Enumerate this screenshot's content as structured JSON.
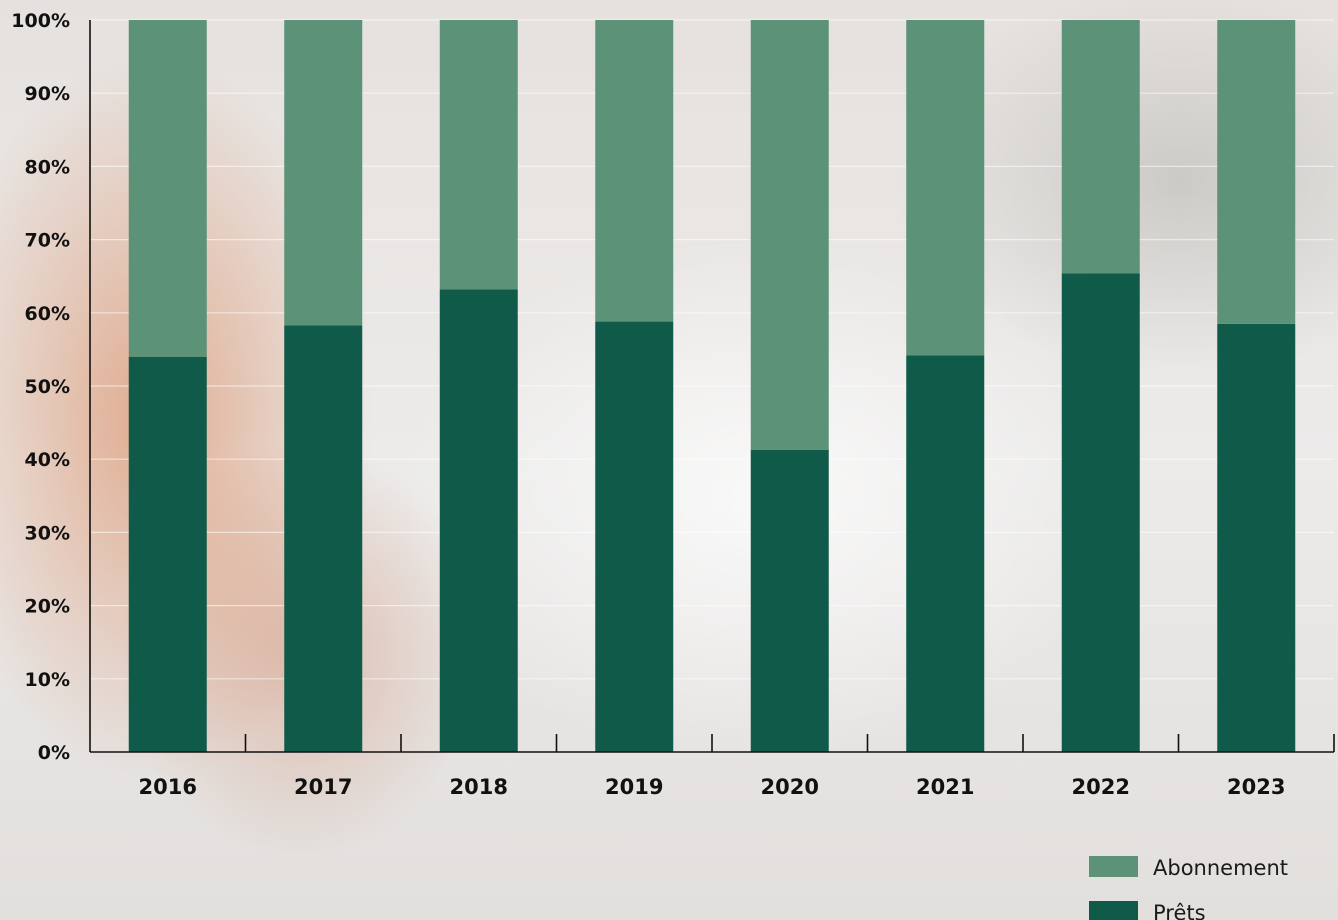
{
  "chart_data": {
    "type": "bar",
    "stacked": true,
    "categories": [
      "2016",
      "2017",
      "2018",
      "2019",
      "2020",
      "2021",
      "2022",
      "2023"
    ],
    "series": [
      {
        "name": "Prêts",
        "values": [
          54,
          58.3,
          63.2,
          58.8,
          41.3,
          54.2,
          65.4,
          58.5
        ],
        "color": "#0f5a48"
      },
      {
        "name": "Abonnement",
        "values": [
          46,
          41.7,
          36.8,
          41.2,
          58.7,
          45.8,
          34.6,
          41.5
        ],
        "color": "#5b9278"
      }
    ],
    "yticks": [
      "0%",
      "10%",
      "20%",
      "30%",
      "40%",
      "50%",
      "60%",
      "70%",
      "80%",
      "90%",
      "100%"
    ],
    "ylim": [
      0,
      100
    ],
    "xlabel": "",
    "ylabel": "",
    "grid": true,
    "legend_position": "bottom-right"
  }
}
